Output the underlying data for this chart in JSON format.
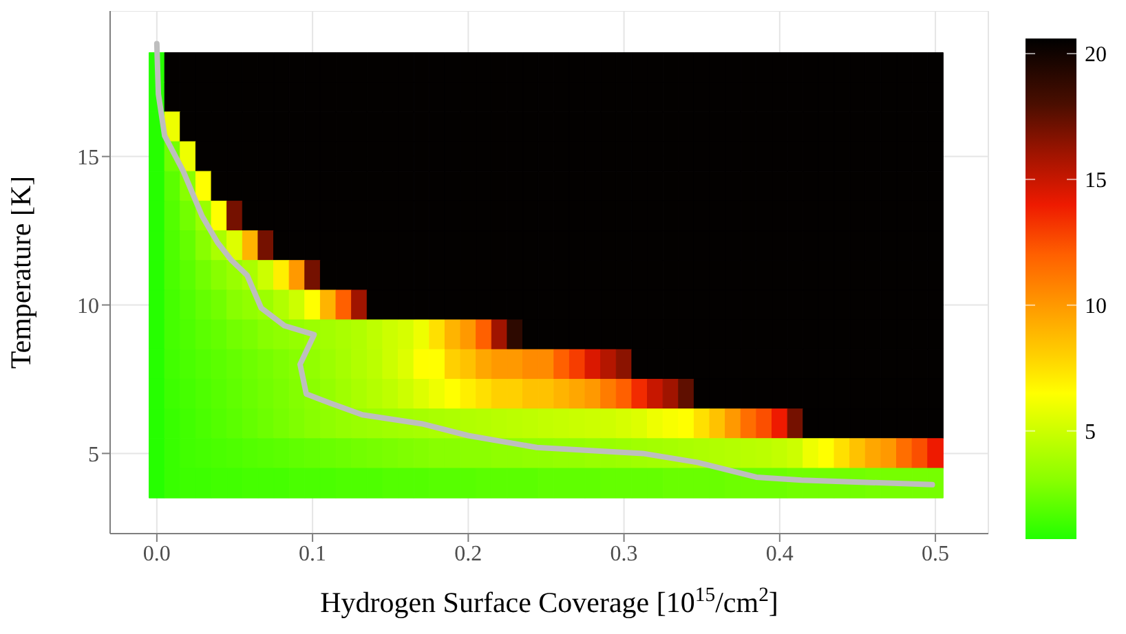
{
  "chart_data": {
    "type": "heatmap",
    "xlabel": "Hydrogen Surface Coverage [10$^{15}$/cm$^{2}$]",
    "ylabel": "Temperature [K]",
    "x": [
      0,
      0.01,
      0.02,
      0.03,
      0.04,
      0.05,
      0.06,
      0.07,
      0.08,
      0.09,
      0.1,
      0.11,
      0.12,
      0.13,
      0.14,
      0.15,
      0.16,
      0.17,
      0.18,
      0.19,
      0.2,
      0.21,
      0.22,
      0.23,
      0.24,
      0.25,
      0.26,
      0.27,
      0.28,
      0.29,
      0.3,
      0.31,
      0.32,
      0.33,
      0.34,
      0.35,
      0.36,
      0.37,
      0.38,
      0.39,
      0.4,
      0.41,
      0.42,
      0.43,
      0.44,
      0.45,
      0.46,
      0.47,
      0.48,
      0.49,
      0.5
    ],
    "y": [
      18,
      17,
      16,
      15,
      14,
      13,
      12,
      11,
      10,
      9,
      8,
      7,
      6,
      5,
      4
    ],
    "cells": [
      [
        0.8,
        20.5,
        20.5,
        20.5,
        20.5,
        20.5,
        20.5,
        20.5,
        20.5,
        20.5,
        20.5,
        20.5,
        20.5,
        20.5,
        20.5,
        20.5,
        20.5,
        20.5,
        20.5,
        20.5,
        20.5,
        20.5,
        20.5,
        20.5,
        20.5,
        20.5,
        20.5,
        20.5,
        20.5,
        20.5,
        20.5,
        20.5,
        20.5,
        20.5,
        20.5,
        20.5,
        20.5,
        20.5,
        20.5,
        20.5,
        20.5,
        20.5,
        20.5,
        20.5,
        20.5,
        20.5,
        20.5,
        20.5,
        20.5,
        20.5,
        20.5
      ],
      [
        0.8,
        20.5,
        20.5,
        20.5,
        20.5,
        20.5,
        20.5,
        20.5,
        20.5,
        20.5,
        20.5,
        20.5,
        20.5,
        20.5,
        20.5,
        20.5,
        20.5,
        20.5,
        20.5,
        20.5,
        20.5,
        20.5,
        20.5,
        20.5,
        20.5,
        20.5,
        20.5,
        20.5,
        20.5,
        20.5,
        20.5,
        20.5,
        20.5,
        20.5,
        20.5,
        20.5,
        20.5,
        20.5,
        20.5,
        20.5,
        20.5,
        20.5,
        20.5,
        20.5,
        20.5,
        20.5,
        20.5,
        20.5,
        20.5,
        20.5,
        20.5
      ],
      [
        0.8,
        6,
        20.5,
        20.5,
        20.5,
        20.5,
        20.5,
        20.5,
        20.5,
        20.5,
        20.5,
        20.5,
        20.5,
        20.5,
        20.5,
        20.5,
        20.5,
        20.5,
        20.5,
        20.5,
        20.5,
        20.5,
        20.5,
        20.5,
        20.5,
        20.5,
        20.5,
        20.5,
        20.5,
        20.5,
        20.5,
        20.5,
        20.5,
        20.5,
        20.5,
        20.5,
        20.5,
        20.5,
        20.5,
        20.5,
        20.5,
        20.5,
        20.5,
        20.5,
        20.5,
        20.5,
        20.5,
        20.5,
        20.5,
        20.5,
        20.5
      ],
      [
        0.8,
        2.5,
        6,
        20.5,
        20.5,
        20.5,
        20.5,
        20.5,
        20.5,
        20.5,
        20.5,
        20.5,
        20.5,
        20.5,
        20.5,
        20.5,
        20.5,
        20.5,
        20.5,
        20.5,
        20.5,
        20.5,
        20.5,
        20.5,
        20.5,
        20.5,
        20.5,
        20.5,
        20.5,
        20.5,
        20.5,
        20.5,
        20.5,
        20.5,
        20.5,
        20.5,
        20.5,
        20.5,
        20.5,
        20.5,
        20.5,
        20.5,
        20.5,
        20.5,
        20.5,
        20.5,
        20.5,
        20.5,
        20.5,
        20.5,
        20.5
      ],
      [
        0.8,
        2,
        3,
        6.5,
        20.5,
        20.5,
        20.5,
        20.5,
        20.5,
        20.5,
        20.5,
        20.5,
        20.5,
        20.5,
        20.5,
        20.5,
        20.5,
        20.5,
        20.5,
        20.5,
        20.5,
        20.5,
        20.5,
        20.5,
        20.5,
        20.5,
        20.5,
        20.5,
        20.5,
        20.5,
        20.5,
        20.5,
        20.5,
        20.5,
        20.5,
        20.5,
        20.5,
        20.5,
        20.5,
        20.5,
        20.5,
        20.5,
        20.5,
        20.5,
        20.5,
        20.5,
        20.5,
        20.5,
        20.5,
        20.5,
        20.5
      ],
      [
        0.8,
        1.8,
        2.5,
        3.5,
        6.5,
        17,
        20.5,
        20.5,
        20.5,
        20.5,
        20.5,
        20.5,
        20.5,
        20.5,
        20.5,
        20.5,
        20.5,
        20.5,
        20.5,
        20.5,
        20.5,
        20.5,
        20.5,
        20.5,
        20.5,
        20.5,
        20.5,
        20.5,
        20.5,
        20.5,
        20.5,
        20.5,
        20.5,
        20.5,
        20.5,
        20.5,
        20.5,
        20.5,
        20.5,
        20.5,
        20.5,
        20.5,
        20.5,
        20.5,
        20.5,
        20.5,
        20.5,
        20.5,
        20.5,
        20.5,
        20.5
      ],
      [
        0.8,
        1.7,
        2.2,
        3,
        4,
        5.5,
        9,
        17,
        20.5,
        20.5,
        20.5,
        20.5,
        20.5,
        20.5,
        20.5,
        20.5,
        20.5,
        20.5,
        20.5,
        20.5,
        20.5,
        20.5,
        20.5,
        20.5,
        20.5,
        20.5,
        20.5,
        20.5,
        20.5,
        20.5,
        20.5,
        20.5,
        20.5,
        20.5,
        20.5,
        20.5,
        20.5,
        20.5,
        20.5,
        20.5,
        20.5,
        20.5,
        20.5,
        20.5,
        20.5,
        20.5,
        20.5,
        20.5,
        20.5,
        20.5,
        20.5
      ],
      [
        0.8,
        1.6,
        2,
        2.5,
        3,
        3.5,
        4,
        5,
        7,
        10,
        17,
        20.5,
        20.5,
        20.5,
        20.5,
        20.5,
        20.5,
        20.5,
        20.5,
        20.5,
        20.5,
        20.5,
        20.5,
        20.5,
        20.5,
        20.5,
        20.5,
        20.5,
        20.5,
        20.5,
        20.5,
        20.5,
        20.5,
        20.5,
        20.5,
        20.5,
        20.5,
        20.5,
        20.5,
        20.5,
        20.5,
        20.5,
        20.5,
        20.5,
        20.5,
        20.5,
        20.5,
        20.5,
        20.5,
        20.5,
        20.5
      ],
      [
        0.8,
        1.5,
        1.8,
        2.2,
        2.5,
        3,
        3.3,
        3.6,
        4.2,
        5,
        6.5,
        9,
        12,
        16,
        20.5,
        20.5,
        20.5,
        20.5,
        20.5,
        20.5,
        20.5,
        20.5,
        20.5,
        20.5,
        20.5,
        20.5,
        20.5,
        20.5,
        20.5,
        20.5,
        20.5,
        20.5,
        20.5,
        20.5,
        20.5,
        20.5,
        20.5,
        20.5,
        20.5,
        20.5,
        20.5,
        20.5,
        20.5,
        20.5,
        20.5,
        20.5,
        20.5,
        20.5,
        20.5,
        20.5,
        20.5
      ],
      [
        0.8,
        1.5,
        1.7,
        2,
        2.2,
        2.5,
        2.7,
        3,
        3.2,
        3.4,
        3.6,
        3.8,
        4,
        4.2,
        4.6,
        5,
        5.3,
        6,
        7.5,
        9,
        10,
        12,
        16,
        19,
        20.5,
        20.5,
        20.5,
        20.5,
        20.5,
        20.5,
        20.5,
        20.5,
        20.5,
        20.5,
        20.5,
        20.5,
        20.5,
        20.5,
        20.5,
        20.5,
        20.5,
        20.5,
        20.5,
        20.5,
        20.5,
        20.5,
        20.5,
        20.5,
        20.5,
        20.5,
        20.5
      ],
      [
        0.8,
        1.4,
        1.6,
        1.8,
        2,
        2.2,
        2.4,
        2.6,
        2.8,
        3,
        3.3,
        3.6,
        3.9,
        4.2,
        4.5,
        5,
        5.5,
        6.5,
        6.5,
        8,
        8.5,
        9.5,
        10,
        10,
        10.5,
        10.5,
        12,
        13,
        14.5,
        15.5,
        16.5,
        20.5,
        20.5,
        20.5,
        20.5,
        20.5,
        20.5,
        20.5,
        20.5,
        20.5,
        20.5,
        20.5,
        20.5,
        20.5,
        20.5,
        20.5,
        20.5,
        20.5,
        20.5,
        20.5,
        20.5
      ],
      [
        0.8,
        1.3,
        1.5,
        1.7,
        1.9,
        2.1,
        2.3,
        2.5,
        2.7,
        2.9,
        3.1,
        3.4,
        3.7,
        4,
        4.3,
        4.6,
        5,
        5.5,
        6,
        6.5,
        7,
        7.5,
        8,
        8,
        8.5,
        8.5,
        9,
        9.5,
        10,
        11,
        12,
        13.5,
        15,
        16,
        17.5,
        20.5,
        20.5,
        20.5,
        20.5,
        20.5,
        20.5,
        20.5,
        20.5,
        20.5,
        20.5,
        20.5,
        20.5,
        20.5,
        20.5,
        20.5,
        20.5
      ],
      [
        0.8,
        1.2,
        1.4,
        1.6,
        1.8,
        2,
        2.2,
        2.4,
        2.6,
        2.8,
        3,
        3.2,
        3.4,
        3.5,
        3.6,
        3.7,
        3.8,
        3.9,
        4,
        4.1,
        4.2,
        4.3,
        4.4,
        4.5,
        4.6,
        4.7,
        4.8,
        4.9,
        5,
        5.1,
        5.3,
        5.5,
        6,
        6.3,
        6.5,
        7.5,
        8.5,
        10,
        11.5,
        12.5,
        14,
        17,
        20.5,
        20.5,
        20.5,
        20.5,
        20.5,
        20.5,
        20.5,
        20.5,
        20.5
      ],
      [
        0.8,
        1.2,
        1.4,
        1.5,
        1.6,
        1.7,
        1.8,
        1.9,
        2,
        2.1,
        2.2,
        2.3,
        2.4,
        2.5,
        2.6,
        2.7,
        2.8,
        2.9,
        3,
        3,
        3.1,
        3.1,
        3.2,
        3.2,
        3.3,
        3.3,
        3.4,
        3.4,
        3.5,
        3.5,
        3.6,
        3.7,
        3.8,
        3.9,
        4,
        4.1,
        4.2,
        4.3,
        4.4,
        4.5,
        4.7,
        5,
        6,
        6.5,
        7.5,
        8.5,
        9.5,
        10,
        11.5,
        12.5,
        14
      ],
      [
        0.8,
        1.2,
        1.3,
        1.3,
        1.4,
        1.4,
        1.5,
        1.5,
        1.5,
        1.6,
        1.6,
        1.6,
        1.7,
        1.7,
        1.7,
        1.8,
        1.8,
        1.8,
        1.9,
        1.9,
        1.9,
        2,
        2,
        2,
        2,
        2.1,
        2.1,
        2.1,
        2.1,
        2.2,
        2.2,
        2.2,
        2.2,
        2.3,
        2.3,
        2.3,
        2.3,
        2.4,
        2.4,
        2.4,
        2.4,
        2.5,
        2.5,
        2.5,
        2.5,
        2.5,
        2.6,
        2.6,
        2.6,
        2.6,
        2.6
      ]
    ],
    "clim": [
      0.7,
      20.6
    ],
    "cticks": [
      5,
      10,
      15,
      20
    ],
    "xlim": [
      -0.03,
      0.534
    ],
    "xticks": [
      {
        "value": 0,
        "label": "0.0"
      },
      {
        "value": 0.1,
        "label": "0.1"
      },
      {
        "value": 0.2,
        "label": "0.2"
      },
      {
        "value": 0.3,
        "label": "0.3"
      },
      {
        "value": 0.4,
        "label": "0.4"
      },
      {
        "value": 0.5,
        "label": "0.5"
      }
    ],
    "ylim": [
      2.3,
      19.9
    ],
    "yticks": [
      5,
      10,
      15
    ],
    "grid": true,
    "series": [
      {
        "type": "line",
        "color": "#bebebe",
        "x": [
          0,
          0.001,
          0.005,
          0.017,
          0.029,
          0.039,
          0.048,
          0.058,
          0.067,
          0.082,
          0.101,
          0.092,
          0.096,
          0.111,
          0.132,
          0.17,
          0.2,
          0.244,
          0.312,
          0.347,
          0.385,
          0.414,
          0.498
        ],
        "values": [
          18.8,
          17.1,
          15.7,
          14.5,
          13,
          12.1,
          11.5,
          11,
          9.9,
          9.3,
          9,
          8,
          7,
          6.7,
          6.3,
          6,
          5.6,
          5.2,
          5,
          4.7,
          4.2,
          4.1,
          3.95
        ]
      }
    ]
  }
}
